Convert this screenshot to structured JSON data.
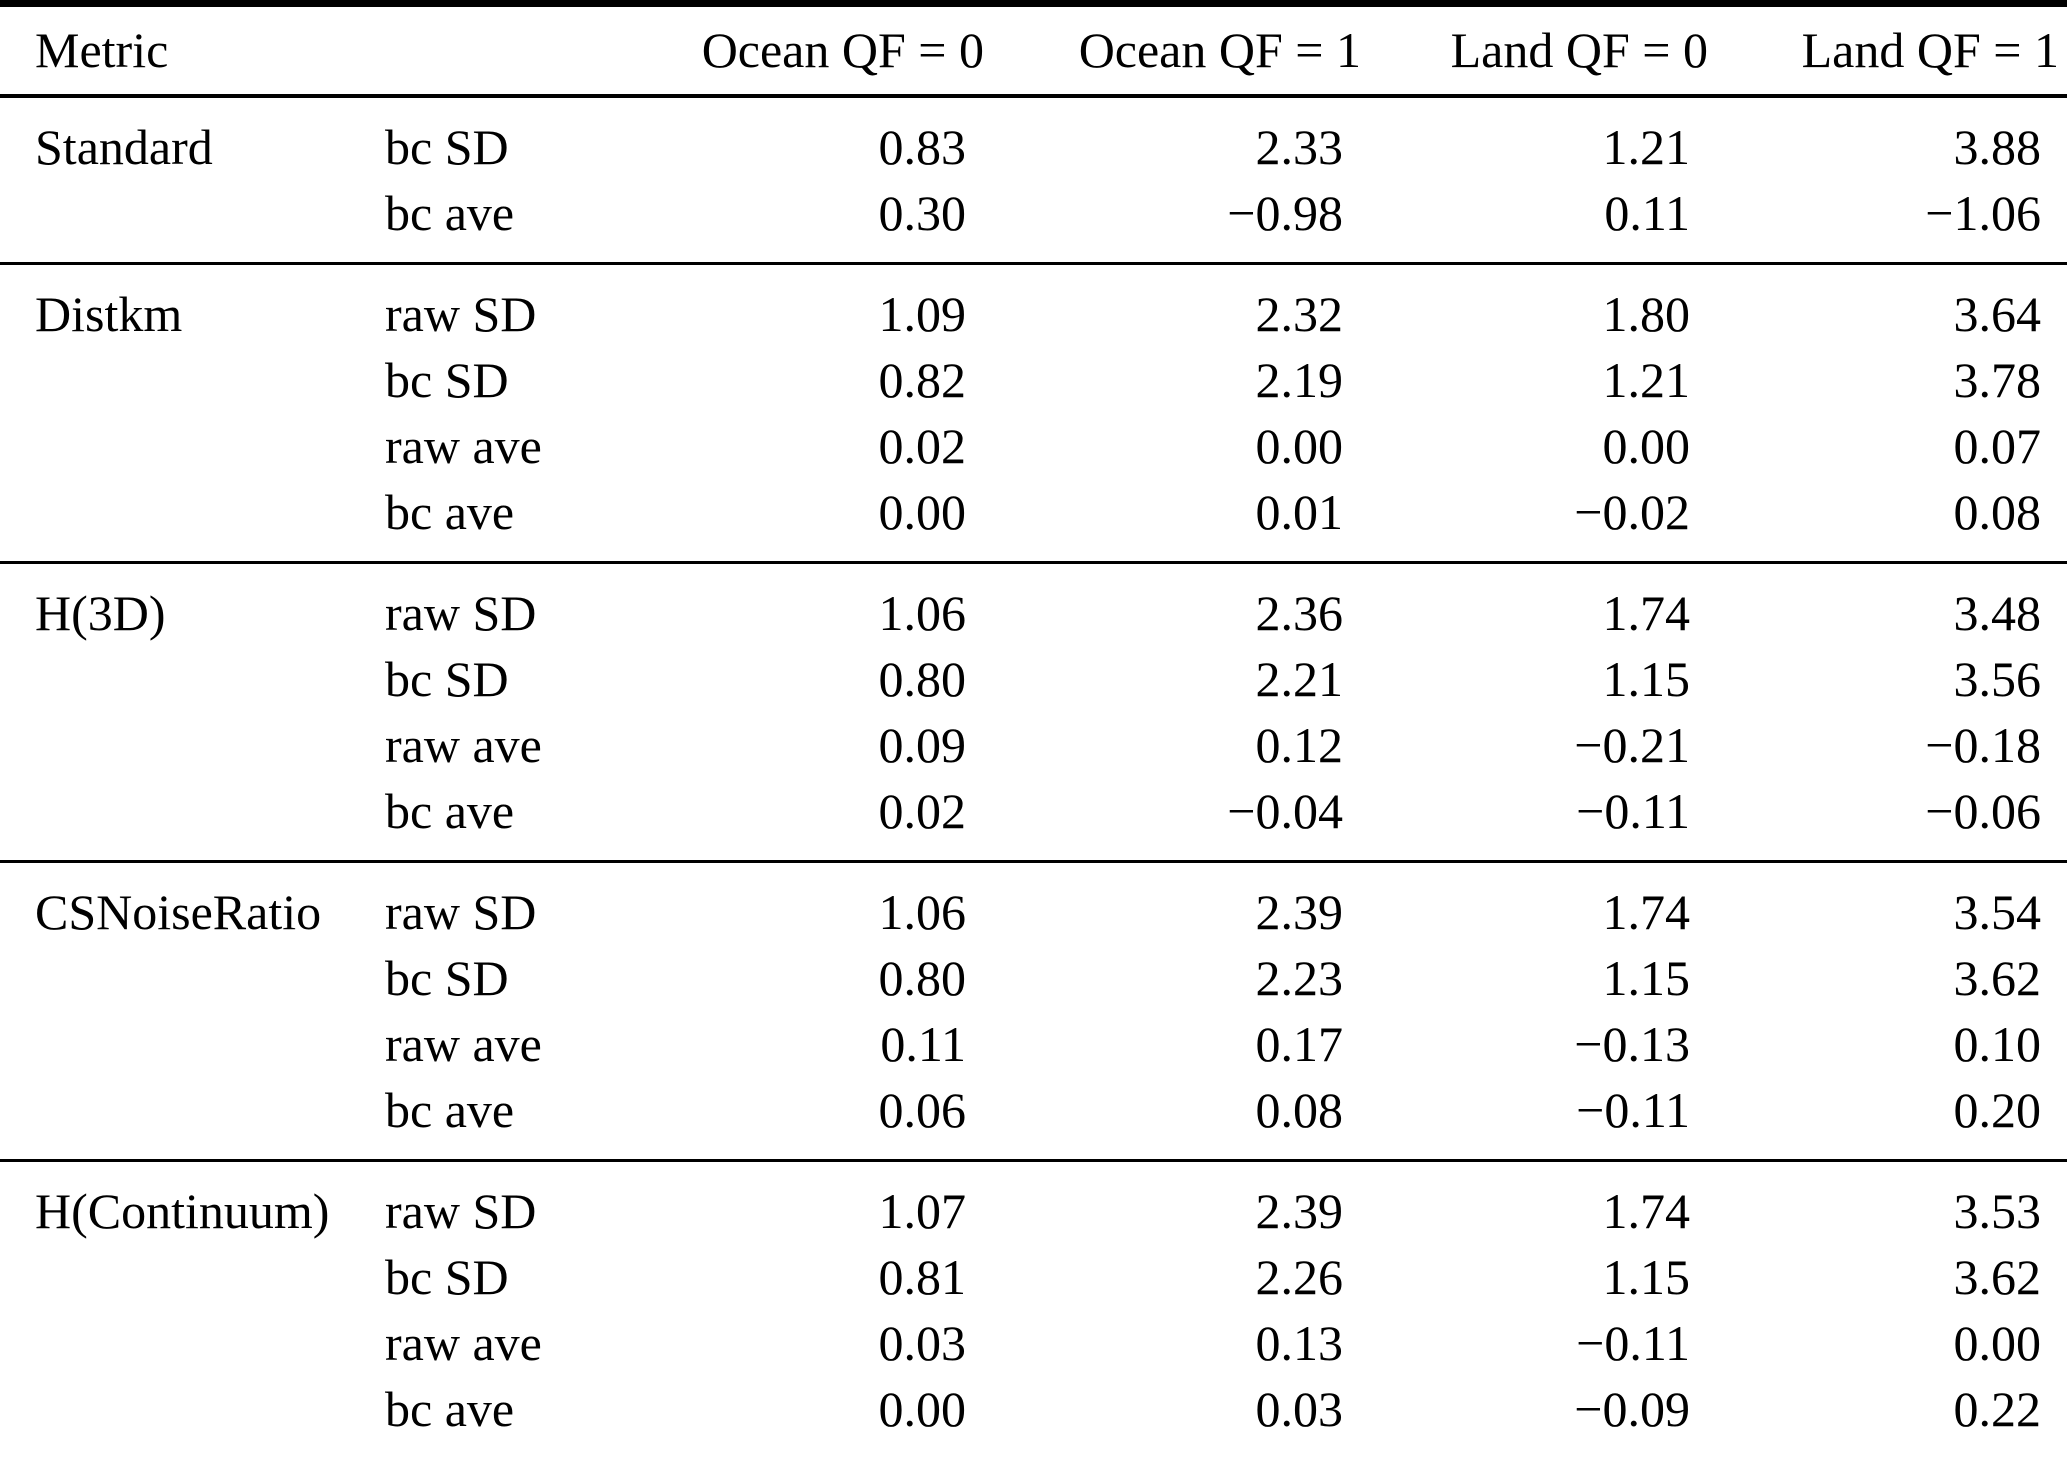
{
  "table": {
    "header": {
      "metric": "Metric",
      "stat": "",
      "cols": [
        "Ocean QF = 0",
        "Ocean QF = 1",
        "Land QF = 0",
        "Land QF = 1"
      ]
    },
    "sections": [
      {
        "metric": "Standard",
        "rows": [
          {
            "stat": "bc SD",
            "values": [
              "0.83",
              "2.33",
              "1.21",
              "3.88"
            ]
          },
          {
            "stat": "bc ave",
            "values": [
              "0.30",
              "−0.98",
              "0.11",
              "−1.06"
            ]
          }
        ]
      },
      {
        "metric": "Distkm",
        "rows": [
          {
            "stat": "raw SD",
            "values": [
              "1.09",
              "2.32",
              "1.80",
              "3.64"
            ]
          },
          {
            "stat": "bc SD",
            "values": [
              "0.82",
              "2.19",
              "1.21",
              "3.78"
            ]
          },
          {
            "stat": "raw ave",
            "values": [
              "0.02",
              "0.00",
              "0.00",
              "0.07"
            ]
          },
          {
            "stat": "bc ave",
            "values": [
              "0.00",
              "0.01",
              "−0.02",
              "0.08"
            ]
          }
        ]
      },
      {
        "metric": "H(3D)",
        "rows": [
          {
            "stat": "raw SD",
            "values": [
              "1.06",
              "2.36",
              "1.74",
              "3.48"
            ]
          },
          {
            "stat": "bc SD",
            "values": [
              "0.80",
              "2.21",
              "1.15",
              "3.56"
            ]
          },
          {
            "stat": "raw ave",
            "values": [
              "0.09",
              "0.12",
              "−0.21",
              "−0.18"
            ]
          },
          {
            "stat": "bc ave",
            "values": [
              "0.02",
              "−0.04",
              "−0.11",
              "−0.06"
            ]
          }
        ]
      },
      {
        "metric": "CSNoiseRatio",
        "rows": [
          {
            "stat": "raw SD",
            "values": [
              "1.06",
              "2.39",
              "1.74",
              "3.54"
            ]
          },
          {
            "stat": "bc SD",
            "values": [
              "0.80",
              "2.23",
              "1.15",
              "3.62"
            ]
          },
          {
            "stat": "raw ave",
            "values": [
              "0.11",
              "0.17",
              "−0.13",
              "0.10"
            ]
          },
          {
            "stat": "bc ave",
            "values": [
              "0.06",
              "0.08",
              "−0.11",
              "0.20"
            ]
          }
        ]
      },
      {
        "metric": "H(Continuum)",
        "rows": [
          {
            "stat": "raw SD",
            "values": [
              "1.07",
              "2.39",
              "1.74",
              "3.53"
            ]
          },
          {
            "stat": "bc SD",
            "values": [
              "0.81",
              "2.26",
              "1.15",
              "3.62"
            ]
          },
          {
            "stat": "raw ave",
            "values": [
              "0.03",
              "0.13",
              "−0.11",
              "0.00"
            ]
          },
          {
            "stat": "bc ave",
            "values": [
              "0.00",
              "0.03",
              "−0.09",
              "0.22"
            ]
          }
        ]
      }
    ]
  }
}
